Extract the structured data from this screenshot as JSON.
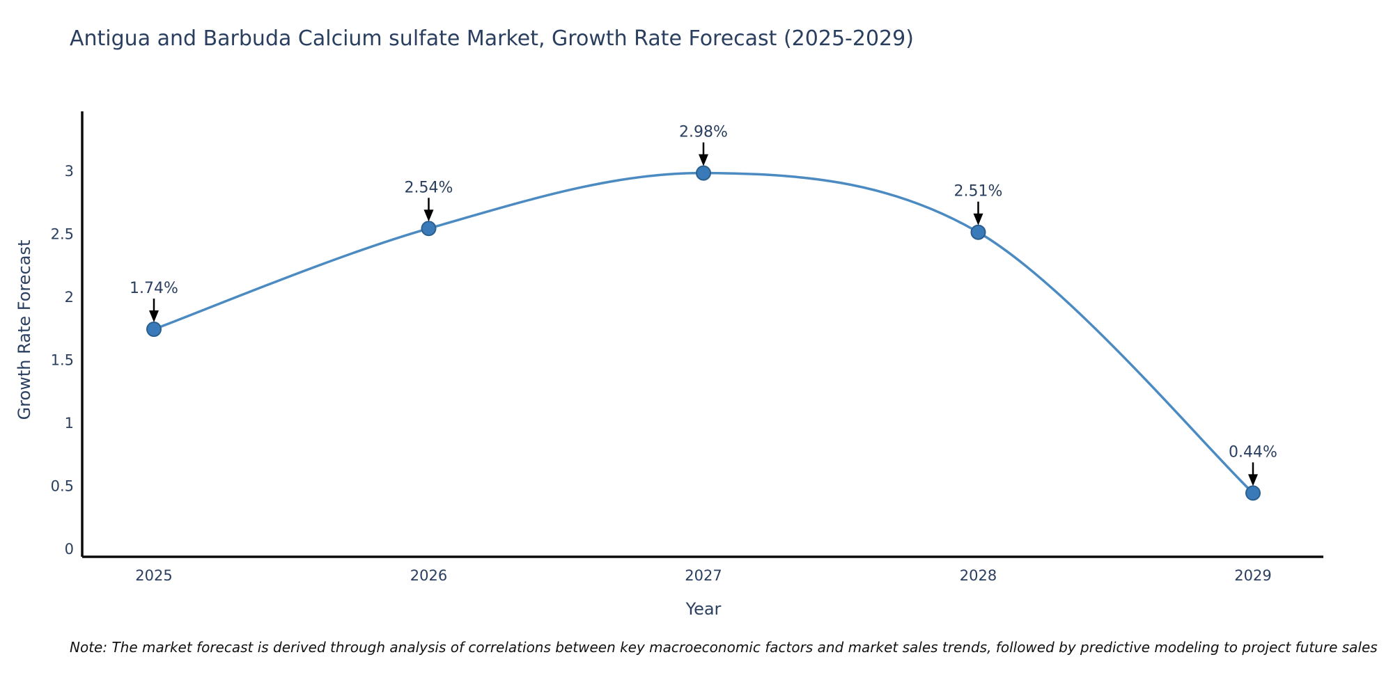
{
  "note": "Note: The market forecast is derived through analysis of correlations between key macroeconomic factors and market sales trends, followed by predictive modeling to project future sales",
  "chart_data": {
    "type": "line",
    "title": "Antigua and Barbuda Calcium sulfate Market, Growth Rate Forecast (2025-2029)",
    "xlabel": "Year",
    "ylabel": "Growth Rate Forecast",
    "x": [
      2025,
      2026,
      2027,
      2028,
      2029
    ],
    "series": [
      {
        "name": "Growth Rate Forecast",
        "values": [
          1.74,
          2.54,
          2.98,
          2.51,
          0.44
        ]
      }
    ],
    "point_labels": [
      "1.74%",
      "2.54%",
      "2.98%",
      "2.51%",
      "0.44%"
    ],
    "yticks": [
      0,
      0.5,
      1,
      1.5,
      2,
      2.5,
      3
    ],
    "xticks": [
      2025,
      2026,
      2027,
      2028,
      2029
    ],
    "ylim": [
      -0.07,
      3.47
    ],
    "xlim": [
      2024.74,
      2029.26
    ],
    "grid": false,
    "legend_position": "none",
    "line_shape": "spline",
    "colors": {
      "line": "#4b8bc2",
      "marker_fill": "#3a7ab8",
      "marker_border": "#2a5f8f",
      "axis": "#0a0a0a",
      "tick_text": "#2a3f5f",
      "annotation_text": "#2a3f5f",
      "annotation_arrow": "#000000",
      "title_text": "#2a3f5f"
    }
  }
}
